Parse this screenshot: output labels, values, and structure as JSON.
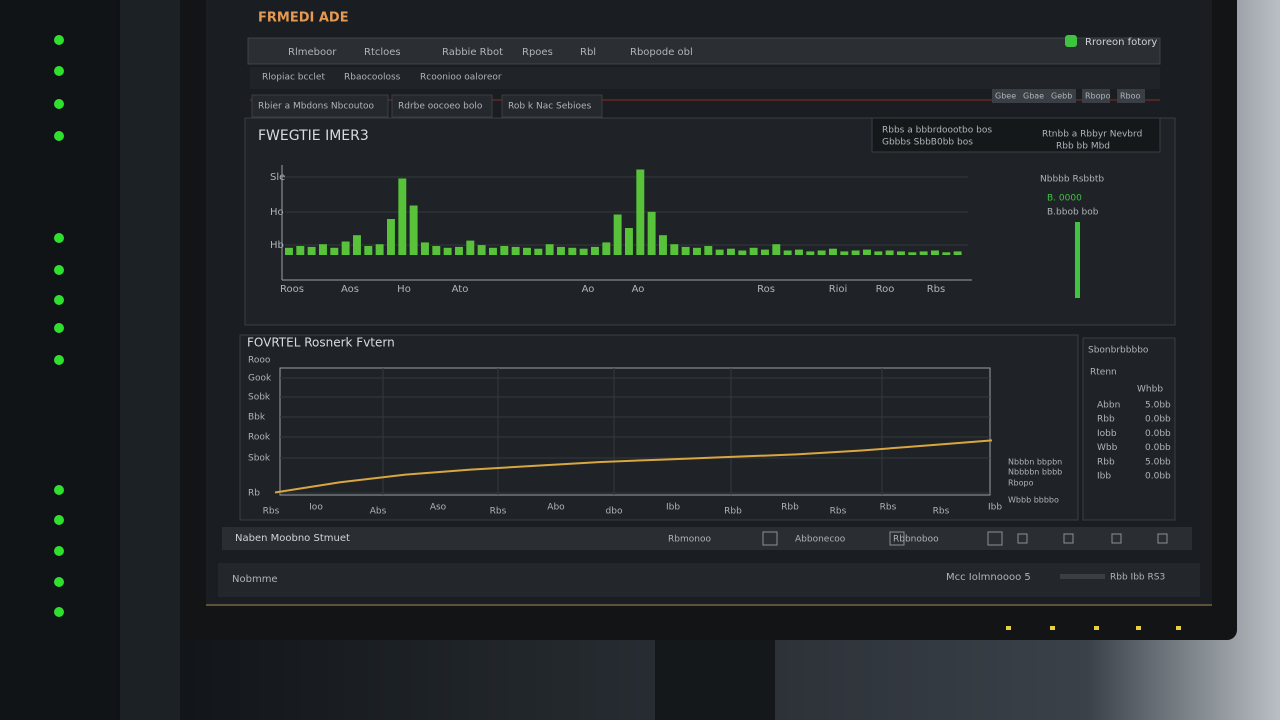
{
  "header": {
    "title": "FRMEDI ADE",
    "status": "Rroreon fotory"
  },
  "tabs": [
    "Rlmeboor",
    "Rtcloes",
    "Rabbie Rbot",
    "Rpoes",
    "Rbl",
    "Rbopode obl"
  ],
  "subtabs": [
    "Rlopiac bcclet",
    "Rbaocooloss",
    "Rcoonioo oaloreor"
  ],
  "filters": [
    "Rbier a Mbdons Nbcoutoo",
    "Rdrbe oocoeo bolo",
    "Rob k Nac Sebioes"
  ],
  "toolbar": [
    "Gbee",
    "Gbae",
    "Gebb",
    "Rbopo",
    "Rboo"
  ],
  "info": [
    "Rbbs a bbbrdoootbo bos",
    "Rtnbb a Rbbyr Nevbrd",
    "Gbbbs SbbB0bb bos",
    "Rbb bb Mbd"
  ],
  "panels": [
    {
      "title": "FWEGTIE IMER3",
      "y_labels": [
        "Sle",
        "Ho",
        "Hb"
      ],
      "x_labels": [
        "Roos",
        "Aos",
        "Ho",
        "Ato",
        "Ao",
        "Ao",
        "Ros",
        "Rioi",
        "Roo",
        "Rbs"
      ],
      "chart": {
        "type": "bar",
        "ylim": [
          0,
          100
        ],
        "values": [
          8,
          10,
          9,
          12,
          8,
          15,
          22,
          10,
          12,
          40,
          85,
          55,
          14,
          10,
          8,
          9,
          16,
          11,
          8,
          10,
          9,
          8,
          7,
          12,
          9,
          8,
          7,
          9,
          14,
          45,
          30,
          95,
          48,
          22,
          12,
          9,
          8,
          10,
          6,
          7,
          5,
          8,
          6,
          12,
          5,
          6,
          4,
          5,
          7,
          4,
          5,
          6,
          4,
          5,
          4,
          3,
          4,
          5,
          3,
          4
        ]
      },
      "side": {
        "title": "Nbbbb Rsbbtb",
        "lines": [
          "B. 0000",
          "B.bbob bob"
        ]
      }
    },
    {
      "title": "FOVRTEL Rosnerk Fvtern",
      "y_labels": [
        "Rooo",
        "Gook",
        "Sobk",
        "Bbk",
        "Rook",
        "Sbok",
        "Rb"
      ],
      "x_labels": [
        "Rbs",
        "Ioo",
        "Abs",
        "Aso",
        "Rbs",
        "Abo",
        "dbo",
        "Ibb",
        "Rbb",
        "Rbb",
        "Rbs",
        "Rbs",
        "Rbs",
        "Ibb"
      ],
      "chart": {
        "type": "line",
        "ylim": [
          0,
          100
        ],
        "values": [
          2,
          10,
          16,
          20,
          23,
          26,
          28,
          30,
          32,
          35,
          39,
          43
        ]
      },
      "legend": [
        "Nbbbn bbpbn",
        "Nbbbbn bbbb",
        "Rbopo",
        "Wbbb bbbbo"
      ]
    }
  ],
  "table": {
    "title": "Sbonbrbbbbo",
    "subtitle": "Rtenn",
    "header": "Whbb",
    "rows": [
      [
        "Abbn",
        "5.0bb"
      ],
      [
        "Rbb",
        "0.0bb"
      ],
      [
        "Iobb",
        "0.0bb"
      ],
      [
        "Wbb",
        "0.0bb"
      ],
      [
        "Rbb",
        "5.0bb"
      ],
      [
        "Ibb",
        "0.0bb"
      ]
    ]
  },
  "statusbar": {
    "left": "Naben Moobno Stmuet",
    "items": [
      "Rbmonoo",
      "Abbonecoo",
      "Rbbnoboo"
    ]
  },
  "footer": {
    "left": "Nobmme",
    "right": "Mcc Iolmnoooo 5",
    "page": "Rbb Ibb RS3"
  }
}
